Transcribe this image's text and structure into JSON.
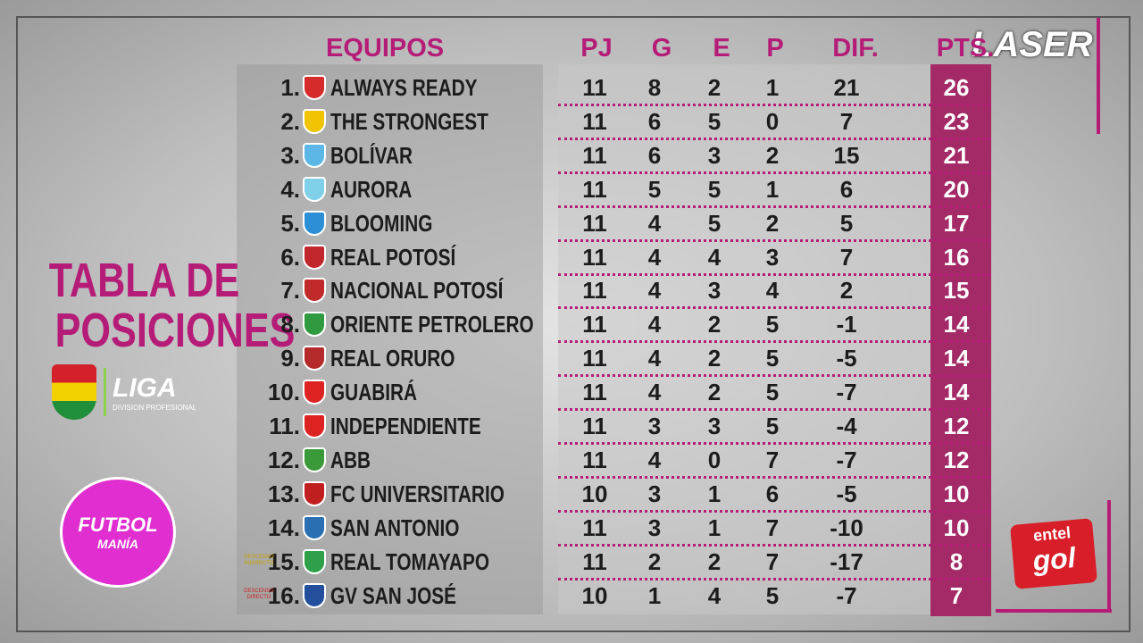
{
  "brand": "LASER",
  "title": [
    "TABLA DE",
    "POSICIONES"
  ],
  "league": {
    "name": "LIGA",
    "subtitle": "DIVISION PROFESIONAL"
  },
  "show": {
    "line1": "FUTBOL",
    "line2": "MANÍA"
  },
  "sponsor": {
    "line1": "entel",
    "line2": "gol"
  },
  "relegation": {
    "indirect": "DESCENSO INDIRECTO",
    "direct": "DESCENSO DIRECTO"
  },
  "table": {
    "headers": [
      "EQUIPOS",
      "PJ",
      "G",
      "E",
      "P",
      "DIF.",
      "PTS."
    ],
    "rows": [
      [
        "1.",
        "ALWAYS READY",
        11,
        8,
        2,
        1,
        21,
        26
      ],
      [
        "2.",
        "THE STRONGEST",
        11,
        6,
        5,
        0,
        7,
        23
      ],
      [
        "3.",
        "BOLÍVAR",
        11,
        6,
        3,
        2,
        15,
        21
      ],
      [
        "4.",
        "AURORA",
        11,
        5,
        5,
        1,
        6,
        20
      ],
      [
        "5.",
        "BLOOMING",
        11,
        4,
        5,
        2,
        5,
        17
      ],
      [
        "6.",
        "REAL POTOSÍ",
        11,
        4,
        4,
        3,
        7,
        16
      ],
      [
        "7.",
        "NACIONAL POTOSÍ",
        11,
        4,
        3,
        4,
        2,
        15
      ],
      [
        "8.",
        "ORIENTE PETROLERO",
        11,
        4,
        2,
        5,
        -1,
        14
      ],
      [
        "9.",
        "REAL ORURO",
        11,
        4,
        2,
        5,
        -5,
        14
      ],
      [
        "10.",
        "GUABIRÁ",
        11,
        4,
        2,
        5,
        -7,
        14
      ],
      [
        "11.",
        "INDEPENDIENTE",
        11,
        3,
        3,
        5,
        -4,
        12
      ],
      [
        "12.",
        "ABB",
        11,
        4,
        0,
        7,
        -7,
        12
      ],
      [
        "13.",
        "FC UNIVERSITARIO",
        10,
        3,
        1,
        6,
        -5,
        10
      ],
      [
        "14.",
        "SAN ANTONIO",
        11,
        3,
        1,
        7,
        -10,
        10
      ],
      [
        "15.",
        "REAL TOMAYAPO",
        11,
        2,
        2,
        7,
        -17,
        8
      ],
      [
        "16.",
        "GV SAN JOSÉ",
        10,
        1,
        4,
        5,
        -7,
        7
      ]
    ]
  }
}
